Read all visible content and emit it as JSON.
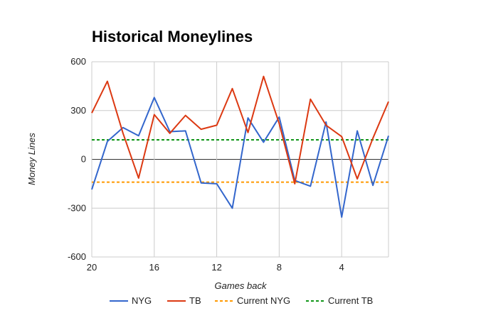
{
  "chart_data": {
    "type": "line",
    "title": "Historical Moneylines",
    "xlabel": "Games back",
    "ylabel": "Money Lines",
    "x": [
      20,
      19,
      18,
      17,
      16,
      15,
      14,
      13,
      12,
      11,
      10,
      9,
      8,
      7,
      6,
      5,
      4,
      3,
      2,
      1
    ],
    "xlim": [
      20,
      1
    ],
    "xticks": [
      "20",
      "16",
      "12",
      "8",
      "4"
    ],
    "xtick_values": [
      20,
      16,
      12,
      8,
      4
    ],
    "ylim": [
      -600,
      600
    ],
    "yticks": [
      "600",
      "300",
      "0",
      "-300",
      "-600"
    ],
    "ytick_values": [
      600,
      300,
      0,
      -300,
      -600
    ],
    "grid": true,
    "legend_position": "bottom",
    "series": [
      {
        "name": "NYG",
        "style": "solid",
        "color": "#3366cc",
        "values": [
          -185,
          110,
          195,
          145,
          380,
          170,
          175,
          -145,
          -150,
          -300,
          255,
          105,
          260,
          -130,
          -165,
          230,
          -355,
          175,
          -160,
          145
        ]
      },
      {
        "name": "TB",
        "style": "solid",
        "color": "#dc3912",
        "values": [
          285,
          480,
          160,
          -115,
          275,
          160,
          270,
          185,
          210,
          435,
          165,
          510,
          220,
          -150,
          370,
          210,
          140,
          -120,
          130,
          355
        ]
      },
      {
        "name": "Current NYG",
        "style": "dashed",
        "color": "#ff9900",
        "values": [
          -140,
          -140,
          -140,
          -140,
          -140,
          -140,
          -140,
          -140,
          -140,
          -140,
          -140,
          -140,
          -140,
          -140,
          -140,
          -140,
          -140,
          -140,
          -140,
          -140
        ]
      },
      {
        "name": "Current TB",
        "style": "dashed",
        "color": "#109618",
        "values": [
          120,
          120,
          120,
          120,
          120,
          120,
          120,
          120,
          120,
          120,
          120,
          120,
          120,
          120,
          120,
          120,
          120,
          120,
          120,
          120
        ]
      }
    ]
  }
}
